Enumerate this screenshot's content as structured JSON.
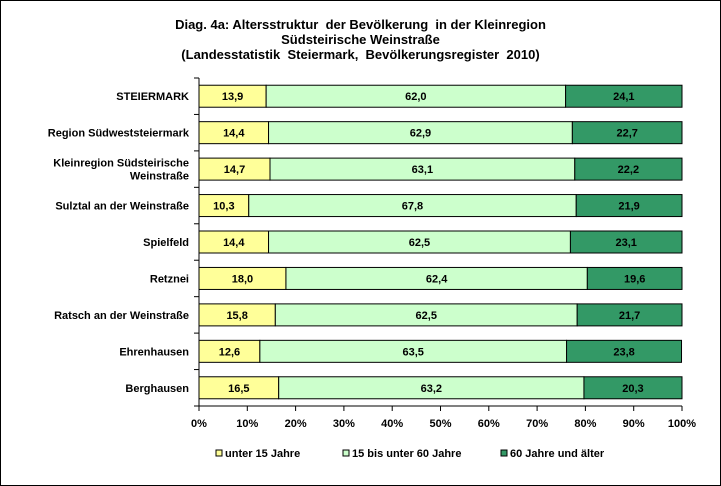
{
  "chart_data": {
    "type": "bar",
    "orientation": "horizontal",
    "stacked": "percent",
    "title_lines": [
      "Diag. 4a: Altersstruktur  der Bevölkerung  in der Kleinregion",
      "Südsteirische Weinstraße",
      "(Landesstatistik  Steiermark,  Bevölkerungsregister  2010)"
    ],
    "categories": [
      [
        "STEIERMARK"
      ],
      [
        "Region Südweststeiermark"
      ],
      [
        "Kleinregion Südsteirische",
        "Weinstraße"
      ],
      [
        "Sulztal an der Weinstraße"
      ],
      [
        "Spielfeld"
      ],
      [
        "Retznei"
      ],
      [
        "Ratsch an der Weinstraße"
      ],
      [
        "Ehrenhausen"
      ],
      [
        "Berghausen"
      ]
    ],
    "series": [
      {
        "name": "unter 15 Jahre",
        "color": "#ffff99",
        "values": [
          13.9,
          14.4,
          14.7,
          10.3,
          14.4,
          18.0,
          15.8,
          12.6,
          16.5
        ]
      },
      {
        "name": "15 bis unter 60 Jahre",
        "color": "#ccffcc",
        "values": [
          62.0,
          62.9,
          63.1,
          67.8,
          62.5,
          62.4,
          62.5,
          63.5,
          63.2
        ]
      },
      {
        "name": "60 Jahre und älter",
        "color": "#339966",
        "values": [
          24.1,
          22.7,
          22.2,
          21.9,
          23.1,
          19.6,
          21.7,
          23.8,
          20.3
        ]
      }
    ],
    "data_labels": [
      [
        "13,9",
        "62,0",
        "24,1"
      ],
      [
        "14,4",
        "62,9",
        "22,7"
      ],
      [
        "14,7",
        "63,1",
        "22,2"
      ],
      [
        "10,3",
        "67,8",
        "21,9"
      ],
      [
        "14,4",
        "62,5",
        "23,1"
      ],
      [
        "18,0",
        "62,4",
        "19,6"
      ],
      [
        "15,8",
        "62,5",
        "21,7"
      ],
      [
        "12,6",
        "63,5",
        "23,8"
      ],
      [
        "16,5",
        "63,2",
        "20,3"
      ]
    ],
    "x_ticks": [
      "0%",
      "10%",
      "20%",
      "30%",
      "40%",
      "50%",
      "60%",
      "70%",
      "80%",
      "90%",
      "100%"
    ],
    "xlim": [
      0,
      100
    ],
    "grid": false,
    "legend_position": "bottom"
  }
}
